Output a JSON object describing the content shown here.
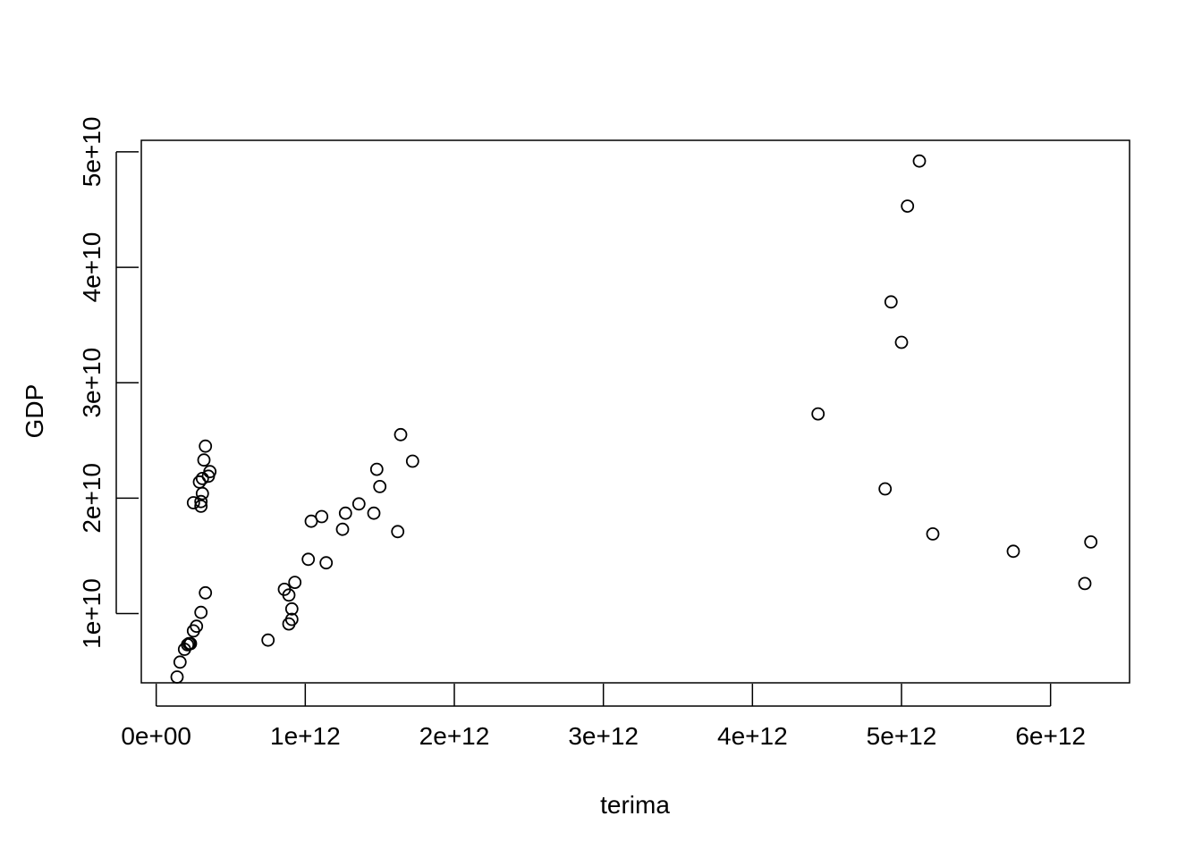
{
  "chart_data": {
    "type": "scatter",
    "title": "",
    "xlabel": "terima",
    "ylabel": "GDP",
    "xlim": [
      -100000000000,
      6530000000000
    ],
    "ylim": [
      4000000000,
      51000000000
    ],
    "x_ticks": [
      0,
      1000000000000,
      2000000000000,
      3000000000000,
      4000000000000,
      5000000000000,
      6000000000000
    ],
    "x_tick_labels": [
      "0e+00",
      "1e+12",
      "2e+12",
      "3e+12",
      "4e+12",
      "5e+12",
      "6e+12"
    ],
    "y_ticks": [
      10000000000,
      20000000000,
      30000000000,
      40000000000,
      50000000000
    ],
    "y_tick_labels": [
      "1e+10",
      "2e+10",
      "3e+10",
      "4e+10",
      "5e+10"
    ],
    "grid": false,
    "legend": null,
    "point_style": "open-circle",
    "point_color": "#000000",
    "series": [
      {
        "points": [
          [
            140000000000.0,
            4500000000.0
          ],
          [
            160000000000.0,
            5800000000.0
          ],
          [
            190000000000.0,
            6900000000.0
          ],
          [
            210000000000.0,
            7300000000.0
          ],
          [
            220000000000.0,
            7400000000.0
          ],
          [
            230000000000.0,
            7400000000.0
          ],
          [
            250000000000.0,
            8500000000.0
          ],
          [
            270000000000.0,
            8900000000.0
          ],
          [
            300000000000.0,
            10100000000.0
          ],
          [
            330000000000.0,
            11800000000.0
          ],
          [
            250000000000.0,
            19600000000.0
          ],
          [
            300000000000.0,
            19300000000.0
          ],
          [
            300000000000.0,
            19700000000.0
          ],
          [
            310000000000.0,
            20400000000.0
          ],
          [
            290000000000.0,
            21400000000.0
          ],
          [
            310000000000.0,
            21700000000.0
          ],
          [
            350000000000.0,
            21900000000.0
          ],
          [
            360000000000.0,
            22300000000.0
          ],
          [
            320000000000.0,
            23300000000.0
          ],
          [
            330000000000.0,
            24500000000.0
          ],
          [
            750000000000.0,
            7700000000.0
          ],
          [
            860000000000.0,
            12100000000.0
          ],
          [
            890000000000.0,
            11600000000.0
          ],
          [
            890000000000.0,
            9100000000.0
          ],
          [
            910000000000.0,
            9500000000.0
          ],
          [
            910000000000.0,
            10400000000.0
          ],
          [
            930000000000.0,
            12700000000.0
          ],
          [
            1020000000000.0,
            14700000000.0
          ],
          [
            1040000000000.0,
            18000000000.0
          ],
          [
            1110000000000.0,
            18400000000.0
          ],
          [
            1140000000000.0,
            14400000000.0
          ],
          [
            1250000000000.0,
            17300000000.0
          ],
          [
            1270000000000.0,
            18700000000.0
          ],
          [
            1360000000000.0,
            19500000000.0
          ],
          [
            1460000000000.0,
            18700000000.0
          ],
          [
            1480000000000.0,
            22500000000.0
          ],
          [
            1500000000000.0,
            21000000000.0
          ],
          [
            1620000000000.0,
            17100000000.0
          ],
          [
            1640000000000.0,
            25500000000.0
          ],
          [
            1720000000000.0,
            23200000000.0
          ],
          [
            4440000000000.0,
            27300000000.0
          ],
          [
            4890000000000.0,
            20800000000.0
          ],
          [
            4930000000000.0,
            37000000000.0
          ],
          [
            5000000000000.0,
            33500000000.0
          ],
          [
            5040000000000.0,
            45300000000.0
          ],
          [
            5120000000000.0,
            49200000000.0
          ],
          [
            5210000000000.0,
            16900000000.0
          ],
          [
            5750000000000.0,
            15400000000.0
          ],
          [
            6230000000000.0,
            12600000000.0
          ],
          [
            6270000000000.0,
            16200000000.0
          ]
        ]
      }
    ]
  }
}
